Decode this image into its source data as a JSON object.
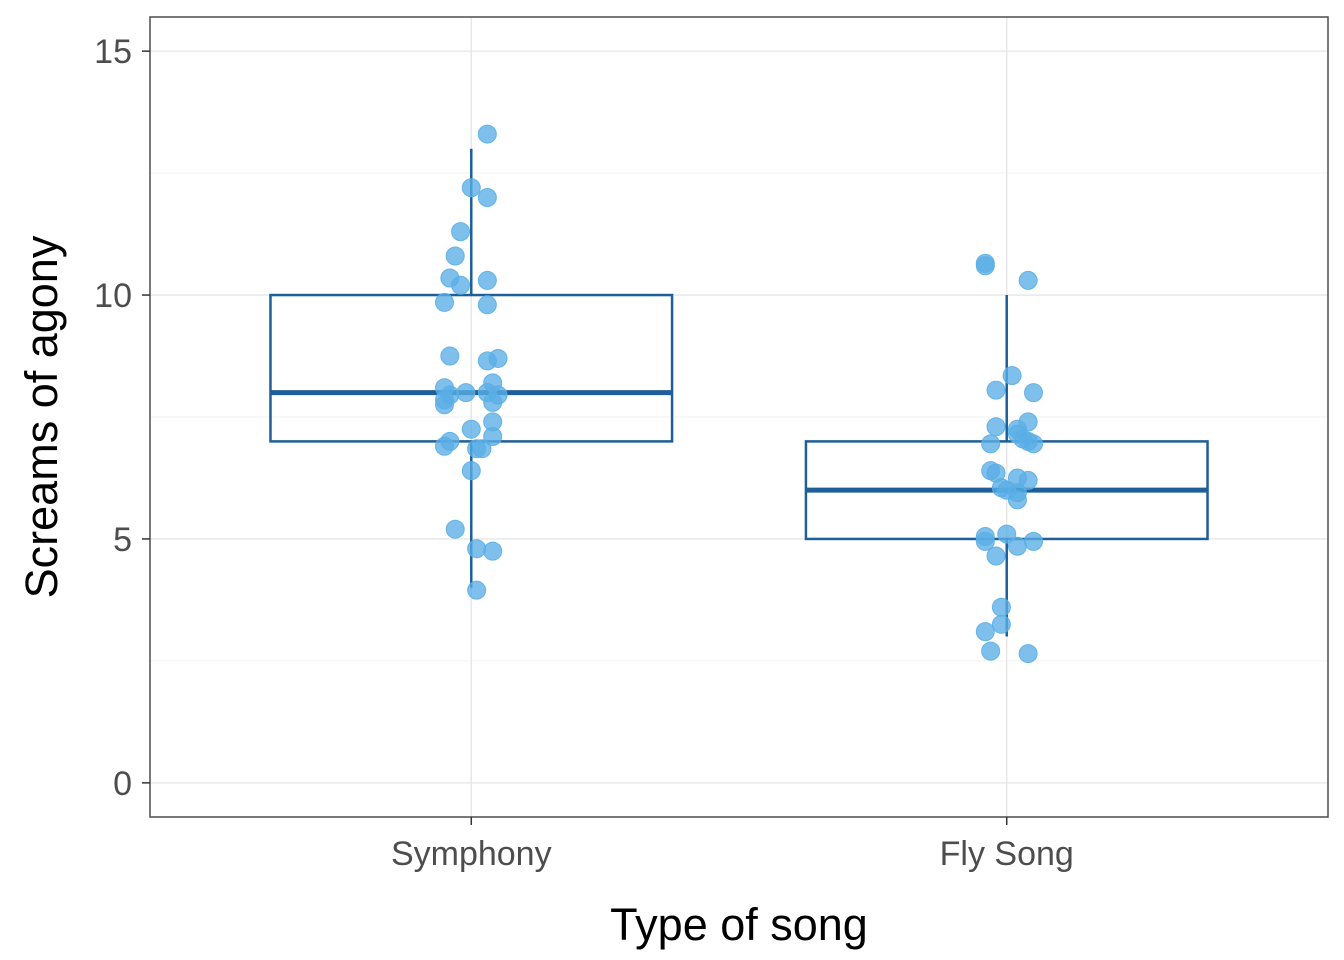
{
  "chart_data": {
    "type": "box",
    "xlabel": "Type of song",
    "ylabel": "Screams of agony",
    "categories": [
      "Symphony",
      "Fly Song"
    ],
    "ylim": [
      -0.7,
      15.7
    ],
    "yticks": [
      0,
      5,
      10,
      15
    ],
    "grid": true,
    "colors": {
      "box": "#1f5f99",
      "point": "#5aaee6",
      "grid": "#e5e5e5",
      "panel_border": "#4d4d4d"
    },
    "boxes": [
      {
        "category": "Symphony",
        "min": 4,
        "q1": 7,
        "median": 8,
        "q3": 10,
        "max": 13
      },
      {
        "category": "Fly Song",
        "min": 3,
        "q1": 5,
        "median": 6,
        "q3": 7,
        "max": 10
      }
    ],
    "points": [
      {
        "x": 1.03,
        "y": 13.3
      },
      {
        "x": 1.0,
        "y": 12.2
      },
      {
        "x": 1.03,
        "y": 12.0
      },
      {
        "x": 0.98,
        "y": 11.3
      },
      {
        "x": 0.97,
        "y": 10.8
      },
      {
        "x": 0.96,
        "y": 10.35
      },
      {
        "x": 1.03,
        "y": 10.3
      },
      {
        "x": 0.98,
        "y": 10.2
      },
      {
        "x": 0.95,
        "y": 9.85
      },
      {
        "x": 1.03,
        "y": 9.8
      },
      {
        "x": 0.96,
        "y": 8.75
      },
      {
        "x": 1.05,
        "y": 8.7
      },
      {
        "x": 1.03,
        "y": 8.65
      },
      {
        "x": 1.04,
        "y": 8.2
      },
      {
        "x": 0.95,
        "y": 8.1
      },
      {
        "x": 0.99,
        "y": 8.0
      },
      {
        "x": 1.03,
        "y": 8.0
      },
      {
        "x": 0.96,
        "y": 7.95
      },
      {
        "x": 1.05,
        "y": 7.95
      },
      {
        "x": 0.95,
        "y": 7.85
      },
      {
        "x": 1.04,
        "y": 7.8
      },
      {
        "x": 0.95,
        "y": 7.75
      },
      {
        "x": 1.04,
        "y": 7.4
      },
      {
        "x": 1.0,
        "y": 7.25
      },
      {
        "x": 1.04,
        "y": 7.1
      },
      {
        "x": 0.96,
        "y": 7.0
      },
      {
        "x": 0.95,
        "y": 6.9
      },
      {
        "x": 1.01,
        "y": 6.85
      },
      {
        "x": 1.02,
        "y": 6.85
      },
      {
        "x": 1.0,
        "y": 6.4
      },
      {
        "x": 0.97,
        "y": 5.2
      },
      {
        "x": 1.01,
        "y": 4.8
      },
      {
        "x": 1.04,
        "y": 4.75
      },
      {
        "x": 1.01,
        "y": 3.95
      },
      {
        "x": 1.96,
        "y": 10.65
      },
      {
        "x": 1.96,
        "y": 10.6
      },
      {
        "x": 2.04,
        "y": 10.3
      },
      {
        "x": 2.01,
        "y": 8.35
      },
      {
        "x": 1.98,
        "y": 8.05
      },
      {
        "x": 2.05,
        "y": 8.0
      },
      {
        "x": 2.04,
        "y": 7.4
      },
      {
        "x": 1.98,
        "y": 7.3
      },
      {
        "x": 2.02,
        "y": 7.25
      },
      {
        "x": 2.02,
        "y": 7.15
      },
      {
        "x": 2.03,
        "y": 7.05
      },
      {
        "x": 1.97,
        "y": 6.95
      },
      {
        "x": 2.05,
        "y": 6.95
      },
      {
        "x": 2.04,
        "y": 7.0
      },
      {
        "x": 1.97,
        "y": 6.4
      },
      {
        "x": 1.98,
        "y": 6.35
      },
      {
        "x": 2.02,
        "y": 6.25
      },
      {
        "x": 2.04,
        "y": 6.2
      },
      {
        "x": 1.99,
        "y": 6.05
      },
      {
        "x": 2.0,
        "y": 6.0
      },
      {
        "x": 2.02,
        "y": 5.95
      },
      {
        "x": 2.02,
        "y": 5.8
      },
      {
        "x": 2.0,
        "y": 5.1
      },
      {
        "x": 1.96,
        "y": 5.05
      },
      {
        "x": 1.96,
        "y": 4.95
      },
      {
        "x": 2.05,
        "y": 4.95
      },
      {
        "x": 2.02,
        "y": 4.85
      },
      {
        "x": 1.98,
        "y": 4.65
      },
      {
        "x": 1.99,
        "y": 3.6
      },
      {
        "x": 1.99,
        "y": 3.25
      },
      {
        "x": 1.96,
        "y": 3.1
      },
      {
        "x": 1.97,
        "y": 2.7
      },
      {
        "x": 2.04,
        "y": 2.65
      }
    ]
  }
}
